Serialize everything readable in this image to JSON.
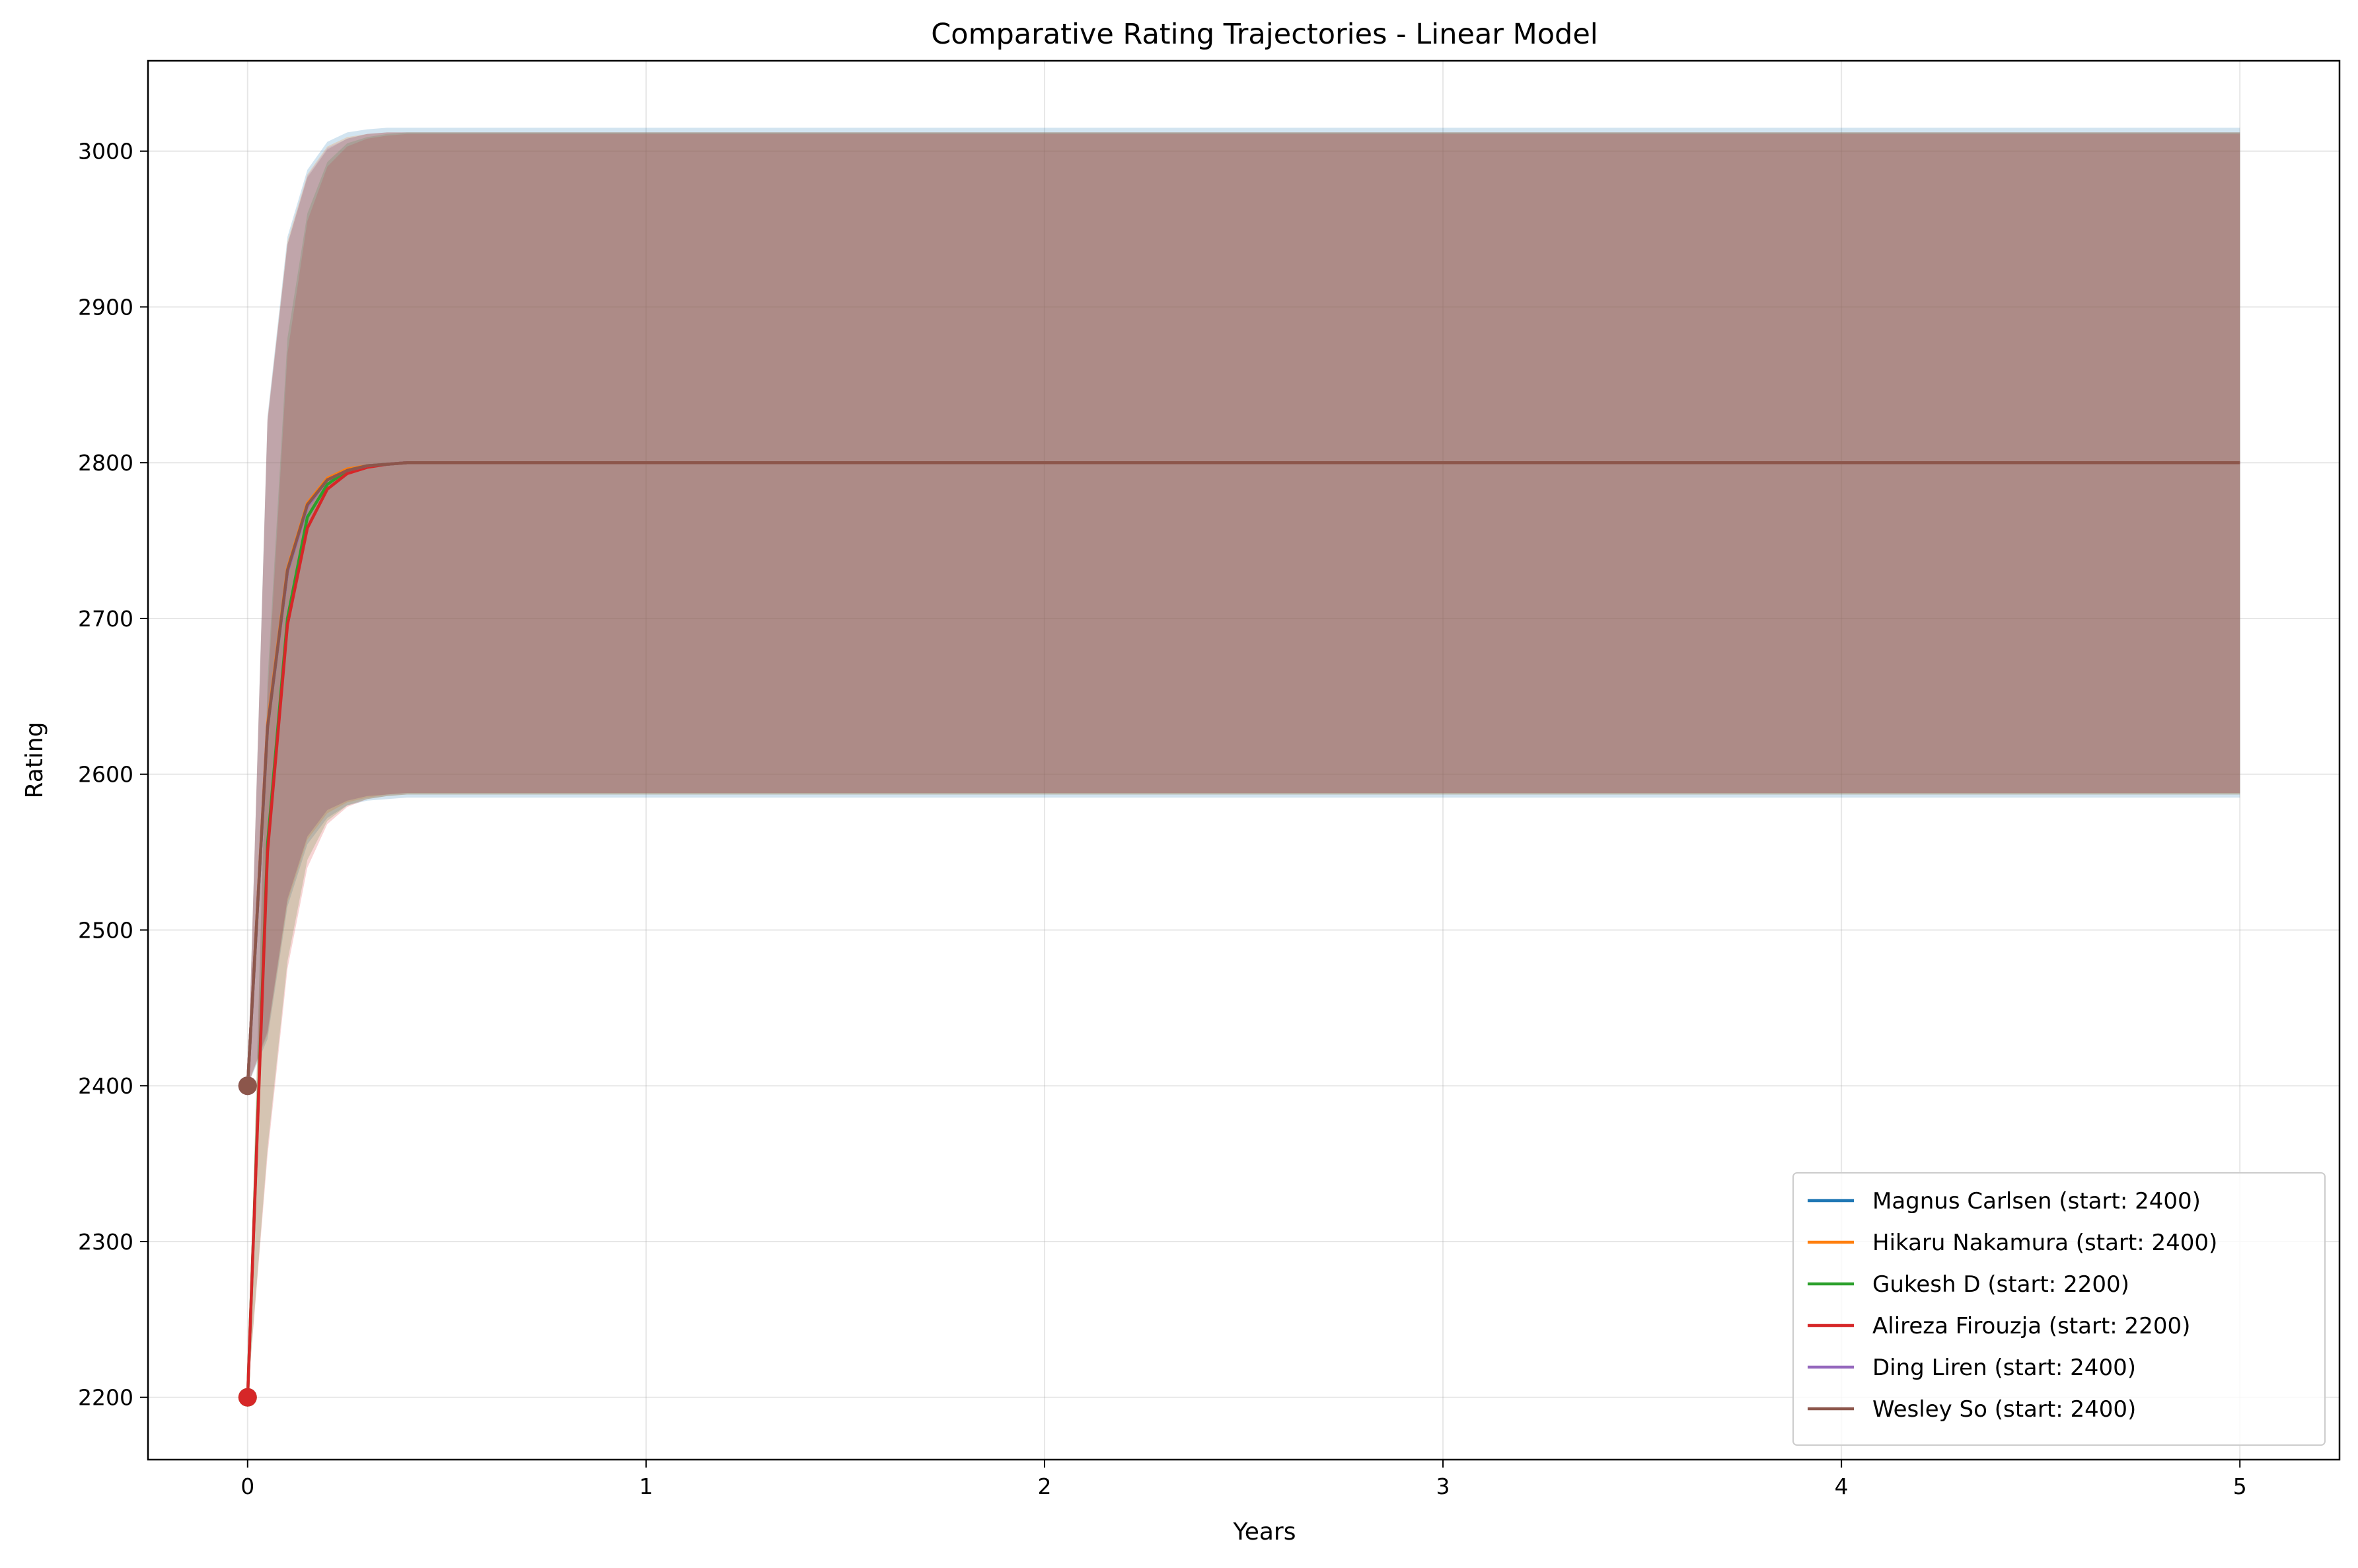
{
  "chart_data": {
    "type": "line",
    "title": "Comparative Rating Trajectories - Linear Model",
    "xlabel": "Years",
    "ylabel": "Rating",
    "xlim": [
      -0.25,
      5.25
    ],
    "ylim": [
      2160,
      3058
    ],
    "x_ticks": [
      0,
      1,
      2,
      3,
      4,
      5
    ],
    "x_tick_labels": [
      "0",
      "1",
      "2",
      "3",
      "4",
      "5"
    ],
    "y_ticks": [
      2200,
      2300,
      2400,
      2500,
      2600,
      2700,
      2800,
      2900,
      3000
    ],
    "y_tick_labels": [
      "2200",
      "2300",
      "2400",
      "2500",
      "2600",
      "2700",
      "2800",
      "2900",
      "3000"
    ],
    "grid": true,
    "legend_position": "lower-right",
    "x": [
      0,
      0.05,
      0.1,
      0.15,
      0.2,
      0.25,
      0.3,
      0.35,
      0.4,
      0.45,
      0.5,
      1,
      2,
      3,
      4,
      5
    ],
    "series": [
      {
        "name": "Magnus Carlsen (start: 2400)",
        "color": "#1f77b4",
        "values": [
          2400,
          2630,
          2730,
          2772,
          2789,
          2795,
          2798,
          2799,
          2800,
          2800,
          2800,
          2800,
          2800,
          2800,
          2800,
          2800
        ],
        "band_upper": [
          2400,
          2830,
          2945,
          2988,
          3006,
          3012,
          3014,
          3015,
          3015,
          3015,
          3015,
          3015,
          3015,
          3015,
          3015,
          3015
        ],
        "band_lower": [
          2400,
          2430,
          2515,
          2555,
          2572,
          2580,
          2583,
          2584,
          2585,
          2585,
          2585,
          2585,
          2585,
          2585,
          2585,
          2585
        ]
      },
      {
        "name": "Hikaru Nakamura (start: 2400)",
        "color": "#ff7f0e",
        "values": [
          2400,
          2632,
          2732,
          2774,
          2790,
          2796,
          2798,
          2799,
          2800,
          2800,
          2800,
          2800,
          2800,
          2800,
          2800,
          2800
        ],
        "band_upper": [
          2400,
          2828,
          2942,
          2985,
          3003,
          3009,
          3011,
          3012,
          3012,
          3012,
          3012,
          3012,
          3012,
          3012,
          3012,
          3012
        ],
        "band_lower": [
          2400,
          2433,
          2518,
          2558,
          2575,
          2582,
          2585,
          2587,
          2588,
          2588,
          2588,
          2588,
          2588,
          2588,
          2588,
          2588
        ]
      },
      {
        "name": "Gukesh D (start: 2200)",
        "color": "#2ca02c",
        "values": [
          2200,
          2555,
          2700,
          2765,
          2786,
          2795,
          2798,
          2799,
          2800,
          2800,
          2800,
          2800,
          2800,
          2800,
          2800,
          2800
        ],
        "band_upper": [
          2200,
          2660,
          2880,
          2960,
          2993,
          3005,
          3009,
          3011,
          3012,
          3012,
          3012,
          3012,
          3012,
          3012,
          3012,
          3012
        ],
        "band_lower": [
          2200,
          2360,
          2480,
          2545,
          2570,
          2580,
          2584,
          2586,
          2587,
          2587,
          2587,
          2587,
          2587,
          2587,
          2587,
          2587
        ]
      },
      {
        "name": "Alireza Firouzja (start: 2200)",
        "color": "#d62728",
        "values": [
          2200,
          2550,
          2696,
          2758,
          2783,
          2793,
          2797,
          2799,
          2800,
          2800,
          2800,
          2800,
          2800,
          2800,
          2800,
          2800
        ],
        "band_upper": [
          2200,
          2650,
          2870,
          2955,
          2990,
          3003,
          3008,
          3010,
          3011,
          3011,
          3011,
          3011,
          3011,
          3011,
          3011,
          3011
        ],
        "band_lower": [
          2200,
          2355,
          2475,
          2540,
          2568,
          2579,
          2584,
          2586,
          2587,
          2587,
          2587,
          2587,
          2587,
          2587,
          2587,
          2587
        ]
      },
      {
        "name": "Ding Liren (start: 2400)",
        "color": "#9467bd",
        "values": [
          2400,
          2630,
          2730,
          2772,
          2789,
          2795,
          2798,
          2799,
          2800,
          2800,
          2800,
          2800,
          2800,
          2800,
          2800,
          2800
        ],
        "band_upper": [
          2400,
          2827,
          2940,
          2984,
          3002,
          3008,
          3011,
          3012,
          3012,
          3012,
          3012,
          3012,
          3012,
          3012,
          3012,
          3012
        ],
        "band_lower": [
          2400,
          2434,
          2520,
          2560,
          2577,
          2583,
          2586,
          2587,
          2588,
          2588,
          2588,
          2588,
          2588,
          2588,
          2588,
          2588
        ]
      },
      {
        "name": "Wesley So (start: 2400)",
        "color": "#8c564b",
        "values": [
          2400,
          2630,
          2731,
          2773,
          2789,
          2795,
          2798,
          2799,
          2800,
          2800,
          2800,
          2800,
          2800,
          2800,
          2800,
          2800
        ],
        "band_upper": [
          2400,
          2826,
          2940,
          2983,
          3001,
          3008,
          3011,
          3012,
          3012,
          3012,
          3012,
          3012,
          3012,
          3012,
          3012,
          3012
        ],
        "band_lower": [
          2400,
          2435,
          2520,
          2560,
          2577,
          2583,
          2586,
          2587,
          2588,
          2588,
          2588,
          2588,
          2588,
          2588,
          2588,
          2588
        ]
      }
    ]
  }
}
